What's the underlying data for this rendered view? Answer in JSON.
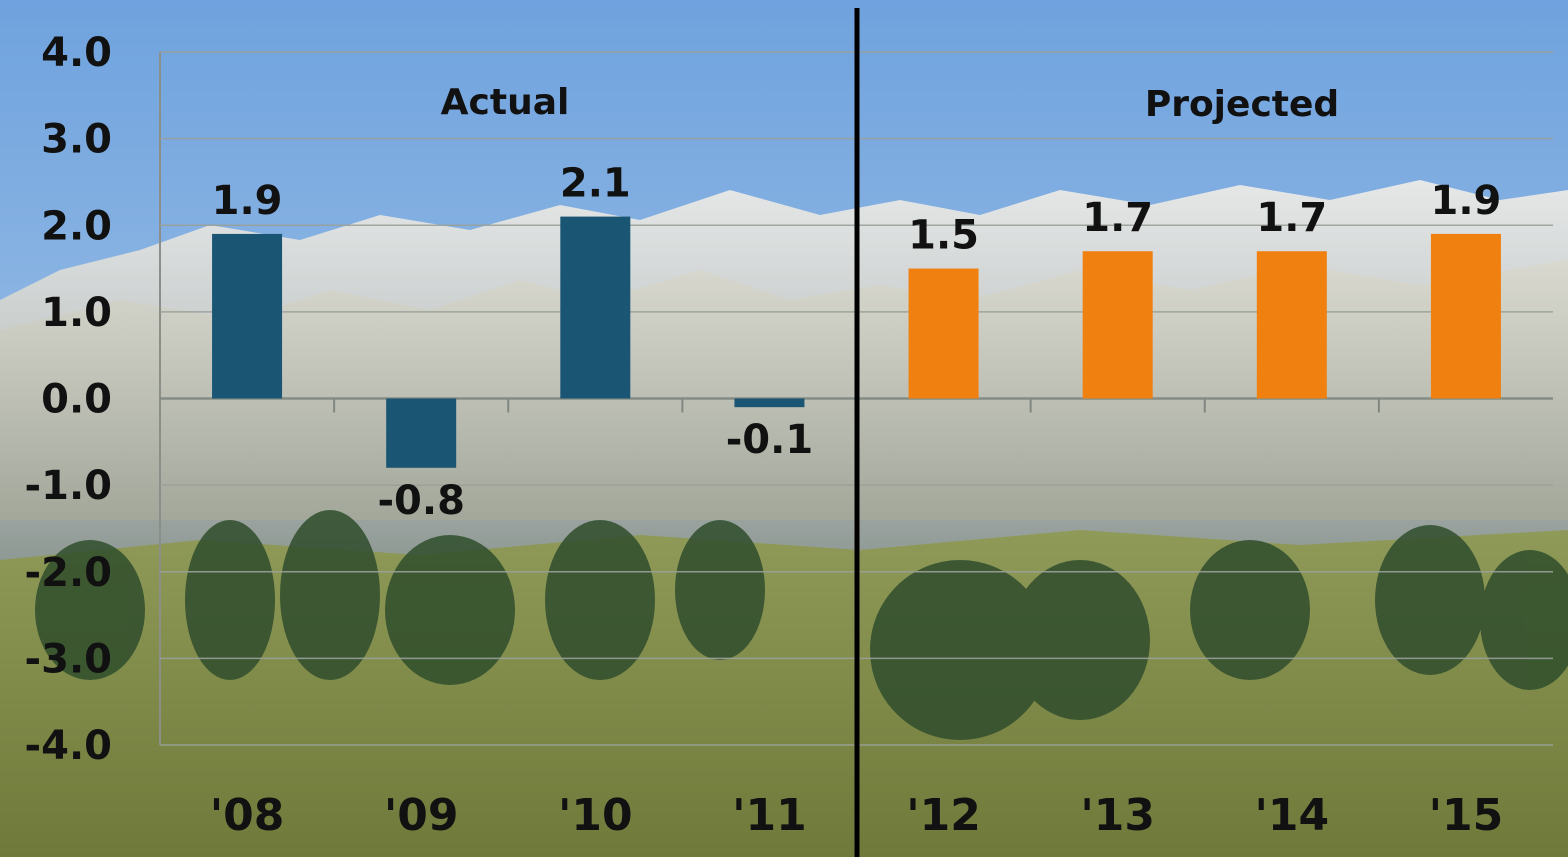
{
  "chart_data": {
    "type": "bar",
    "categories": [
      "'08",
      "'09",
      "'10",
      "'11",
      "'12",
      "'13",
      "'14",
      "'15"
    ],
    "series": [
      {
        "values": [
          1.9,
          -0.8,
          2.1,
          -0.1,
          null,
          null,
          null,
          null
        ],
        "color": "#1b5574"
      },
      {
        "values": [
          null,
          null,
          null,
          null,
          1.5,
          1.7,
          1.7,
          1.9
        ],
        "color": "#f08010"
      }
    ],
    "data_labels": [
      "1.9",
      "-0.8",
      "2.1",
      "-0.1",
      "1.5",
      "1.7",
      "1.7",
      "1.9"
    ],
    "section_labels": [
      "Actual",
      "Projected"
    ],
    "yticks": [
      "4.0",
      "3.0",
      "2.0",
      "1.0",
      "0.0",
      "-1.0",
      "-2.0",
      "-3.0",
      "-4.0"
    ],
    "ylim": [
      -4,
      4
    ],
    "grid": true,
    "divider_after_category": "'11",
    "colors": {
      "actual": "#1b5574",
      "projected": "#f08010"
    }
  }
}
